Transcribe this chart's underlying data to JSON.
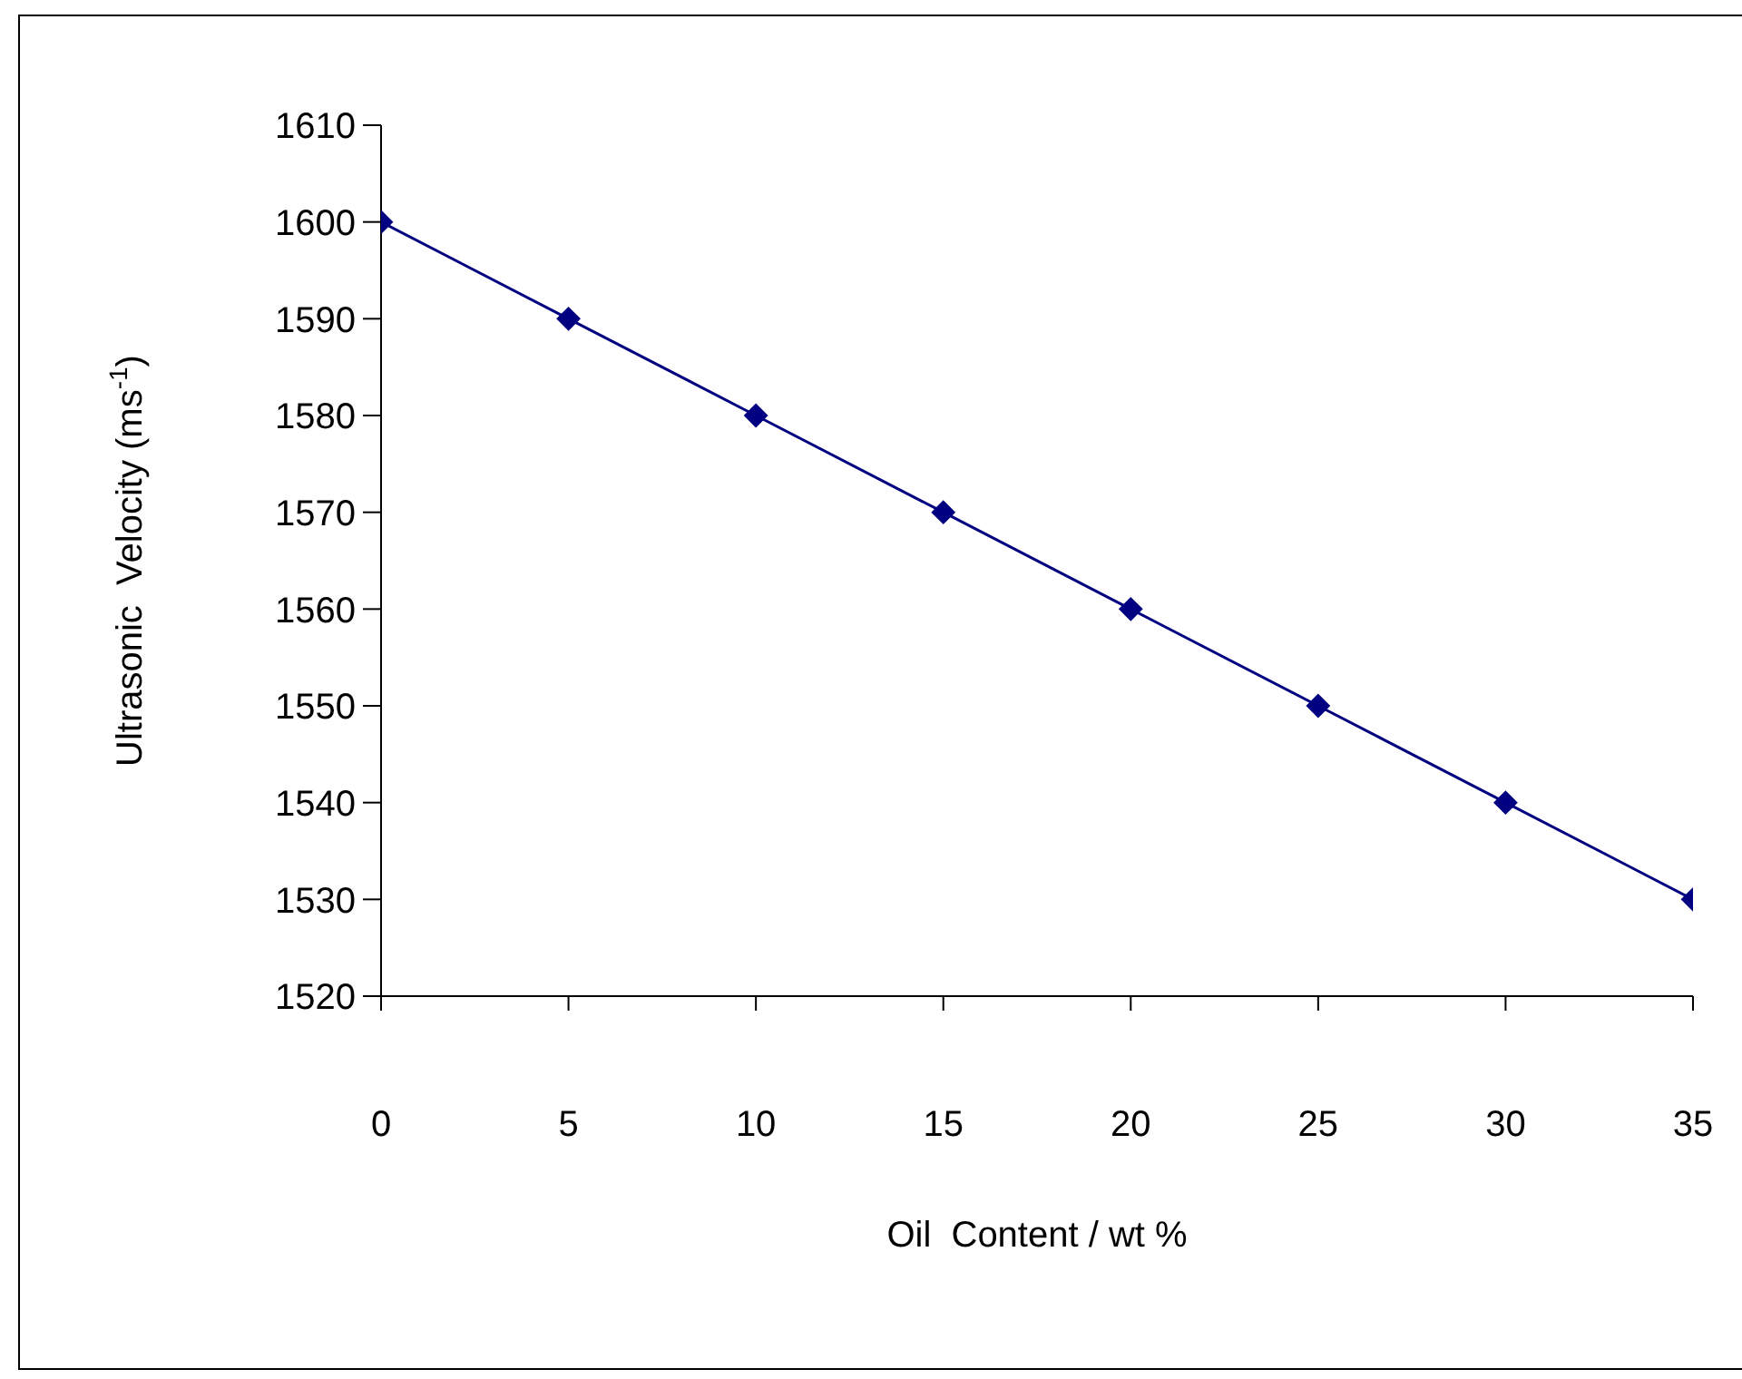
{
  "chart_data": {
    "type": "line",
    "xlabel": "Oil  Content / wt %",
    "ylabel": "Ultrasonic  Velocity (ms$^{-1}$)",
    "x": [
      0,
      5,
      10,
      15,
      20,
      25,
      30,
      35
    ],
    "series": [
      {
        "color": "#000080",
        "values": [
          1600,
          1590,
          1580,
          1570,
          1560,
          1550,
          1540,
          1530
        ]
      }
    ],
    "xlim": [
      0,
      35
    ],
    "xticks": [
      0,
      5,
      10,
      15,
      20,
      25,
      30,
      35
    ],
    "ylim": [
      1520,
      1610
    ],
    "yticks": [
      1520,
      1530,
      1540,
      1550,
      1560,
      1570,
      1580,
      1590,
      1600,
      1610
    ],
    "grid": false,
    "legend": false,
    "marker": "diamond",
    "line_style": "solid"
  }
}
